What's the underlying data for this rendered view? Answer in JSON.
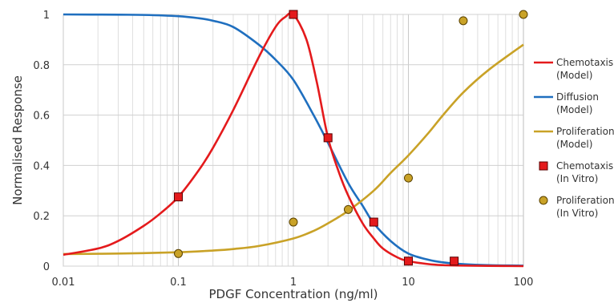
{
  "chart_data": {
    "type": "line",
    "title": "",
    "xlabel": "PDGF Concentration (ng/ml)",
    "ylabel": "Normalised Response",
    "xscale": "log",
    "xlim": [
      0.01,
      100
    ],
    "ylim": [
      0,
      1
    ],
    "grid": true,
    "legend_position": "right",
    "x_ticks": [
      "0.01",
      "0.1",
      "1",
      "10",
      "100"
    ],
    "y_ticks": [
      "0",
      "0.2",
      "0.4",
      "0.6",
      "0.8",
      "1"
    ],
    "series": [
      {
        "name": "Chemotaxis",
        "name_line2": "(Model)",
        "kind": "line",
        "color": "#e41a1c",
        "x": [
          0.01,
          0.02,
          0.03,
          0.05,
          0.07,
          0.1,
          0.15,
          0.2,
          0.3,
          0.5,
          0.7,
          0.85,
          1,
          1.3,
          1.6,
          2,
          2.5,
          3,
          4,
          5,
          6,
          8,
          10,
          15,
          20,
          30,
          50,
          100
        ],
        "y": [
          0.045,
          0.07,
          0.1,
          0.16,
          0.21,
          0.275,
          0.38,
          0.47,
          0.62,
          0.83,
          0.95,
          0.99,
          1.0,
          0.9,
          0.73,
          0.51,
          0.37,
          0.28,
          0.17,
          0.11,
          0.07,
          0.035,
          0.02,
          0.008,
          0.004,
          0.002,
          0.001,
          0.0
        ]
      },
      {
        "name": "Diffusion",
        "name_line2": "(Model)",
        "kind": "line",
        "color": "#1f6fbf",
        "x": [
          0.01,
          0.03,
          0.05,
          0.1,
          0.15,
          0.2,
          0.3,
          0.5,
          0.7,
          1,
          1.5,
          2,
          3,
          4,
          5,
          7,
          10,
          15,
          20,
          30,
          50,
          100
        ],
        "y": [
          1.0,
          0.999,
          0.998,
          0.993,
          0.985,
          0.975,
          0.95,
          0.88,
          0.82,
          0.74,
          0.6,
          0.49,
          0.33,
          0.24,
          0.17,
          0.1,
          0.05,
          0.025,
          0.015,
          0.008,
          0.004,
          0.002
        ]
      },
      {
        "name": "Proliferation",
        "name_line2": "(Model)",
        "kind": "line",
        "color": "#c9a227",
        "x": [
          0.01,
          0.03,
          0.1,
          0.2,
          0.3,
          0.5,
          1,
          1.5,
          2,
          3,
          5,
          7,
          10,
          15,
          20,
          30,
          50,
          100
        ],
        "y": [
          0.048,
          0.05,
          0.055,
          0.062,
          0.068,
          0.08,
          0.11,
          0.14,
          0.17,
          0.22,
          0.3,
          0.37,
          0.44,
          0.53,
          0.6,
          0.69,
          0.78,
          0.88
        ]
      },
      {
        "name": "Chemotaxis",
        "name_line2": "(In Vitro)",
        "kind": "scatter",
        "marker": "square",
        "color": "#e41a1c",
        "x": [
          0.1,
          1,
          2,
          5,
          10,
          25
        ],
        "y": [
          0.275,
          1.0,
          0.51,
          0.175,
          0.02,
          0.02
        ]
      },
      {
        "name": "Proliferation",
        "name_line2": "(In Vitro)",
        "kind": "scatter",
        "marker": "circle",
        "color": "#c9a227",
        "x": [
          0.1,
          1,
          3,
          10,
          30,
          100
        ],
        "y": [
          0.05,
          0.175,
          0.225,
          0.35,
          0.975,
          1.0
        ]
      }
    ]
  }
}
